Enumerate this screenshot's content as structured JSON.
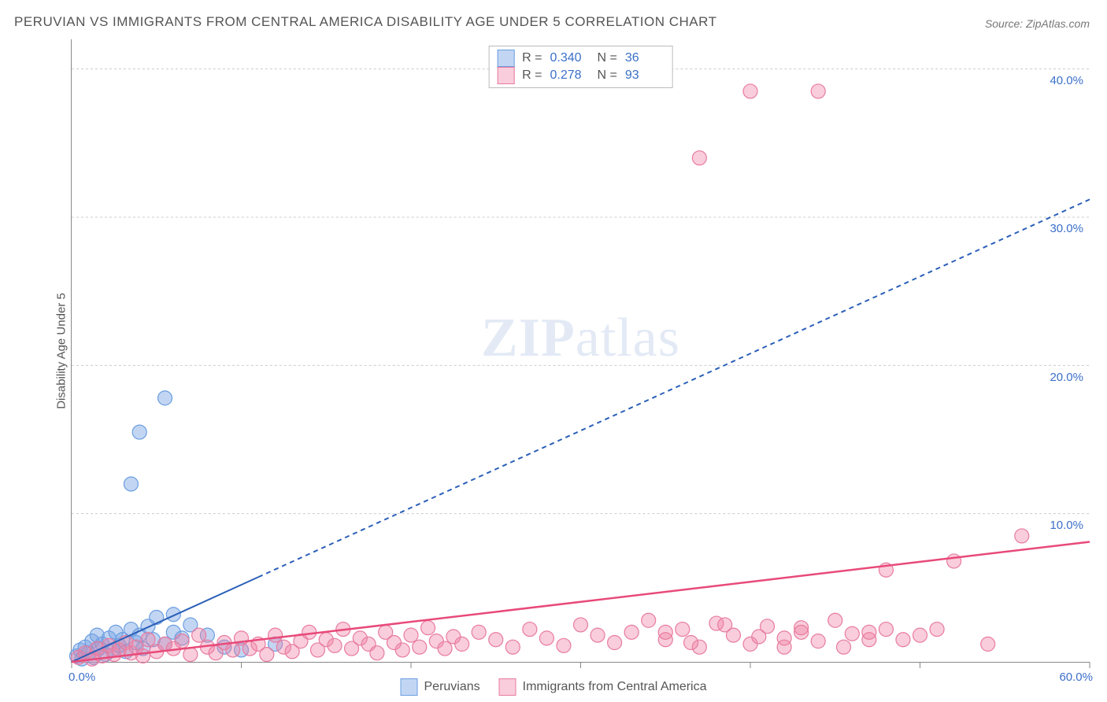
{
  "title": "PERUVIAN VS IMMIGRANTS FROM CENTRAL AMERICA DISABILITY AGE UNDER 5 CORRELATION CHART",
  "source": "Source: ZipAtlas.com",
  "ylabel": "Disability Age Under 5",
  "watermark_bold": "ZIP",
  "watermark_rest": "atlas",
  "chart": {
    "type": "scatter",
    "xlim": [
      0,
      60
    ],
    "ylim": [
      0,
      42
    ],
    "x_ticks": [
      0,
      10,
      20,
      30,
      40,
      50,
      60
    ],
    "x_tick_labels": {
      "0": "0.0%",
      "60": "60.0%"
    },
    "y_gridlines": [
      10,
      20,
      30,
      40
    ],
    "y_tick_labels": {
      "10": "10.0%",
      "20": "20.0%",
      "30": "30.0%",
      "40": "40.0%"
    },
    "axis_label_color": "#3b6fc9",
    "grid_color": "#cccccc",
    "bg_color": "#ffffff",
    "series": [
      {
        "name": "Peruvians",
        "color_fill": "rgba(120,165,228,0.45)",
        "color_stroke": "#6a9de0",
        "marker_radius": 9,
        "trend": {
          "solid_to_x": 11,
          "slope": 0.52,
          "intercept": 0,
          "dash": "6,5",
          "stroke": "#2b5fb8",
          "width": 2
        },
        "legend_top": {
          "R": "0.340",
          "N": "36"
        },
        "points": [
          [
            0.3,
            0.4
          ],
          [
            0.5,
            0.8
          ],
          [
            0.6,
            0.2
          ],
          [
            0.8,
            1.0
          ],
          [
            1.0,
            0.6
          ],
          [
            1.2,
            1.4
          ],
          [
            1.3,
            0.3
          ],
          [
            1.5,
            1.8
          ],
          [
            1.6,
            0.9
          ],
          [
            1.8,
            1.2
          ],
          [
            2.0,
            0.5
          ],
          [
            2.2,
            1.6
          ],
          [
            2.4,
            0.8
          ],
          [
            2.6,
            2.0
          ],
          [
            2.8,
            1.1
          ],
          [
            3.0,
            1.5
          ],
          [
            3.2,
            0.7
          ],
          [
            3.5,
            2.2
          ],
          [
            3.8,
            1.3
          ],
          [
            4.0,
            1.8
          ],
          [
            4.2,
            0.9
          ],
          [
            4.5,
            2.4
          ],
          [
            4.8,
            1.5
          ],
          [
            5.0,
            3.0
          ],
          [
            5.5,
            1.2
          ],
          [
            6.0,
            2.0
          ],
          [
            6.5,
            1.6
          ],
          [
            7.0,
            2.5
          ],
          [
            8.0,
            1.8
          ],
          [
            9.0,
            1.0
          ],
          [
            10.0,
            0.8
          ],
          [
            12.0,
            1.2
          ],
          [
            3.5,
            12.0
          ],
          [
            4.0,
            15.5
          ],
          [
            5.5,
            17.8
          ],
          [
            6.0,
            3.2
          ]
        ]
      },
      {
        "name": "Immigrants from Central America",
        "color_fill": "rgba(240,130,165,0.40)",
        "color_stroke": "#e87ba0",
        "marker_radius": 9,
        "trend": {
          "solid_to_x": 60,
          "slope": 0.135,
          "intercept": 0,
          "dash": "none",
          "stroke": "#e84a7a",
          "width": 2.5
        },
        "legend_top": {
          "R": "0.278",
          "N": "93"
        },
        "points": [
          [
            0.4,
            0.3
          ],
          [
            0.8,
            0.6
          ],
          [
            1.2,
            0.2
          ],
          [
            1.5,
            0.9
          ],
          [
            1.8,
            0.4
          ],
          [
            2.2,
            1.1
          ],
          [
            2.5,
            0.5
          ],
          [
            2.8,
            0.8
          ],
          [
            3.2,
            1.3
          ],
          [
            3.5,
            0.6
          ],
          [
            3.8,
            1.0
          ],
          [
            4.2,
            0.4
          ],
          [
            4.5,
            1.5
          ],
          [
            5.0,
            0.7
          ],
          [
            5.5,
            1.2
          ],
          [
            6.0,
            0.9
          ],
          [
            6.5,
            1.4
          ],
          [
            7.0,
            0.5
          ],
          [
            7.5,
            1.8
          ],
          [
            8.0,
            1.0
          ],
          [
            8.5,
            0.6
          ],
          [
            9.0,
            1.3
          ],
          [
            9.5,
            0.8
          ],
          [
            10.0,
            1.6
          ],
          [
            10.5,
            0.9
          ],
          [
            11.0,
            1.2
          ],
          [
            11.5,
            0.5
          ],
          [
            12.0,
            1.8
          ],
          [
            12.5,
            1.0
          ],
          [
            13.0,
            0.7
          ],
          [
            13.5,
            1.4
          ],
          [
            14.0,
            2.0
          ],
          [
            14.5,
            0.8
          ],
          [
            15.0,
            1.5
          ],
          [
            15.5,
            1.1
          ],
          [
            16.0,
            2.2
          ],
          [
            16.5,
            0.9
          ],
          [
            17.0,
            1.6
          ],
          [
            17.5,
            1.2
          ],
          [
            18.0,
            0.6
          ],
          [
            18.5,
            2.0
          ],
          [
            19.0,
            1.3
          ],
          [
            19.5,
            0.8
          ],
          [
            20.0,
            1.8
          ],
          [
            20.5,
            1.0
          ],
          [
            21.0,
            2.3
          ],
          [
            21.5,
            1.4
          ],
          [
            22.0,
            0.9
          ],
          [
            22.5,
            1.7
          ],
          [
            23.0,
            1.2
          ],
          [
            24.0,
            2.0
          ],
          [
            25.0,
            1.5
          ],
          [
            26.0,
            1.0
          ],
          [
            27.0,
            2.2
          ],
          [
            28.0,
            1.6
          ],
          [
            29.0,
            1.1
          ],
          [
            30.0,
            2.5
          ],
          [
            31.0,
            1.8
          ],
          [
            32.0,
            1.3
          ],
          [
            33.0,
            2.0
          ],
          [
            34.0,
            2.8
          ],
          [
            35.0,
            1.5
          ],
          [
            36.0,
            2.2
          ],
          [
            37.0,
            1.0
          ],
          [
            38.0,
            2.6
          ],
          [
            39.0,
            1.8
          ],
          [
            40.0,
            1.2
          ],
          [
            41.0,
            2.4
          ],
          [
            42.0,
            1.6
          ],
          [
            43.0,
            2.0
          ],
          [
            44.0,
            1.4
          ],
          [
            45.0,
            2.8
          ],
          [
            46.0,
            1.9
          ],
          [
            47.0,
            1.5
          ],
          [
            48.0,
            2.2
          ],
          [
            37.0,
            34.0
          ],
          [
            40.0,
            38.5
          ],
          [
            44.0,
            38.5
          ],
          [
            48.0,
            6.2
          ],
          [
            50.0,
            1.8
          ],
          [
            52.0,
            6.8
          ],
          [
            54.0,
            1.2
          ],
          [
            56.0,
            8.5
          ],
          [
            42.0,
            1.0
          ],
          [
            35.0,
            2.0
          ],
          [
            36.5,
            1.3
          ],
          [
            38.5,
            2.5
          ],
          [
            40.5,
            1.7
          ],
          [
            43.0,
            2.3
          ],
          [
            45.5,
            1.0
          ],
          [
            47.0,
            2.0
          ],
          [
            49.0,
            1.5
          ],
          [
            51.0,
            2.2
          ]
        ]
      }
    ]
  },
  "legend_bottom": [
    {
      "label": "Peruvians",
      "fill": "rgba(120,165,228,0.45)",
      "stroke": "#6a9de0"
    },
    {
      "label": "Immigrants from Central America",
      "fill": "rgba(240,130,165,0.40)",
      "stroke": "#e87ba0"
    }
  ]
}
